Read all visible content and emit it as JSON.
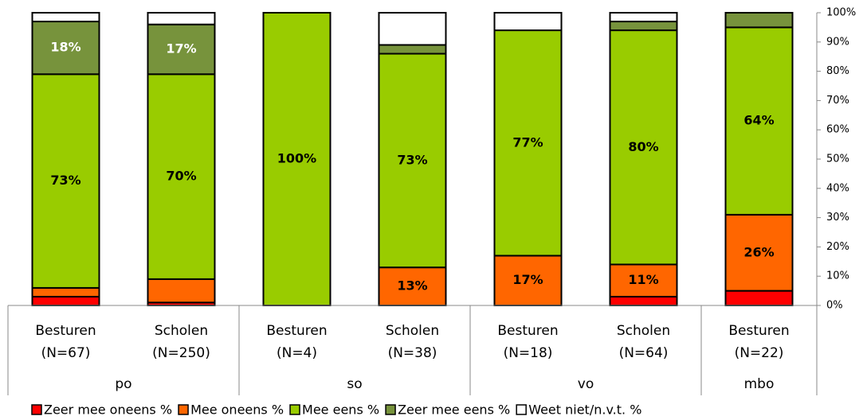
{
  "chart_data": {
    "type": "stacked_bar",
    "groups": [
      {
        "label": "po",
        "categories": [
          "Besturen",
          "Scholen"
        ],
        "notes": [
          "(N=67)",
          "(N=250)"
        ]
      },
      {
        "label": "so",
        "categories": [
          "Besturen",
          "Scholen"
        ],
        "notes": [
          "(N=4)",
          "(N=38)"
        ]
      },
      {
        "label": "vo",
        "categories": [
          "Besturen",
          "Scholen"
        ],
        "notes": [
          "(N=18)",
          "(N=64)"
        ]
      },
      {
        "label": "mbo",
        "categories": [
          "Besturen"
        ],
        "notes": [
          "(N=22)"
        ]
      }
    ],
    "series": [
      {
        "name": "Zeer mee oneens %",
        "color": "#ff0000",
        "label_color": "#000000",
        "values": [
          3,
          1,
          0,
          0,
          0,
          3,
          5
        ],
        "value_labels": [
          null,
          null,
          null,
          null,
          null,
          null,
          null
        ]
      },
      {
        "name": "Mee oneens %",
        "color": "#ff6600",
        "label_color": "#000000",
        "values": [
          3,
          8,
          0,
          13,
          17,
          11,
          26
        ],
        "value_labels": [
          null,
          null,
          null,
          "13%",
          "17%",
          "11%",
          "26%"
        ]
      },
      {
        "name": "Mee eens %",
        "color": "#99cc00",
        "label_color": "#000000",
        "values": [
          73,
          70,
          100,
          73,
          77,
          80,
          64
        ],
        "value_labels": [
          "73%",
          "70%",
          "100%",
          "73%",
          "77%",
          "80%",
          "64%"
        ]
      },
      {
        "name": "Zeer mee eens %",
        "color": "#77933c",
        "label_color": "#ffffff",
        "values": [
          18,
          17,
          0,
          3,
          0,
          3,
          5
        ],
        "value_labels": [
          "18%",
          "17%",
          null,
          null,
          null,
          null,
          null
        ]
      },
      {
        "name": "Weet niet/n.v.t. %",
        "color": "#ffffff",
        "label_color": "#000000",
        "values": [
          3,
          4,
          0,
          11,
          6,
          3,
          0
        ],
        "value_labels": [
          null,
          null,
          null,
          null,
          null,
          null,
          null
        ]
      }
    ],
    "ylim": [
      0,
      100
    ],
    "yticks": [
      {
        "value": 0,
        "label": "0%"
      },
      {
        "value": 10,
        "label": "10%"
      },
      {
        "value": 20,
        "label": "20%"
      },
      {
        "value": 30,
        "label": "30%"
      },
      {
        "value": 40,
        "label": "40%"
      },
      {
        "value": 50,
        "label": "50%"
      },
      {
        "value": 60,
        "label": "60%"
      },
      {
        "value": 70,
        "label": "70%"
      },
      {
        "value": 80,
        "label": "80%"
      },
      {
        "value": 90,
        "label": "90%"
      },
      {
        "value": 100,
        "label": "100%"
      }
    ],
    "legend": "bottom"
  }
}
